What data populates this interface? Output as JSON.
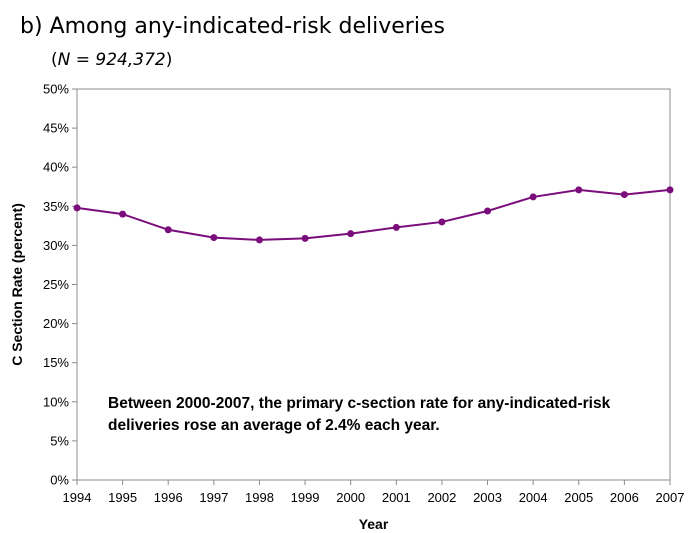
{
  "title": "b) Among any-indicated-risk deliveries",
  "subtitle": {
    "open": "(",
    "label": "N = 924,372",
    "close": ")"
  },
  "chart_data": {
    "type": "line",
    "xlabel": "Year",
    "ylabel": "C Section Rate (percent)",
    "ylim": [
      0,
      50
    ],
    "yticks": [
      "0%",
      "5%",
      "10%",
      "15%",
      "20%",
      "25%",
      "30%",
      "35%",
      "40%",
      "45%",
      "50%"
    ],
    "x": [
      "1994",
      "1995",
      "1996",
      "1997",
      "1998",
      "1999",
      "2000",
      "2001",
      "2002",
      "2003",
      "2004",
      "2005",
      "2006",
      "2007"
    ],
    "series": [
      {
        "values": [
          34.8,
          34.0,
          32.0,
          31.0,
          30.7,
          30.9,
          31.5,
          32.3,
          33.0,
          34.4,
          36.2,
          37.1,
          36.5,
          37.1
        ],
        "color": "#7B0C7B"
      }
    ],
    "grid": false,
    "annotation": "Between 2000-2007, the primary c-section rate for any-indicated-risk deliveries rose an average of 2.4% each year."
  }
}
